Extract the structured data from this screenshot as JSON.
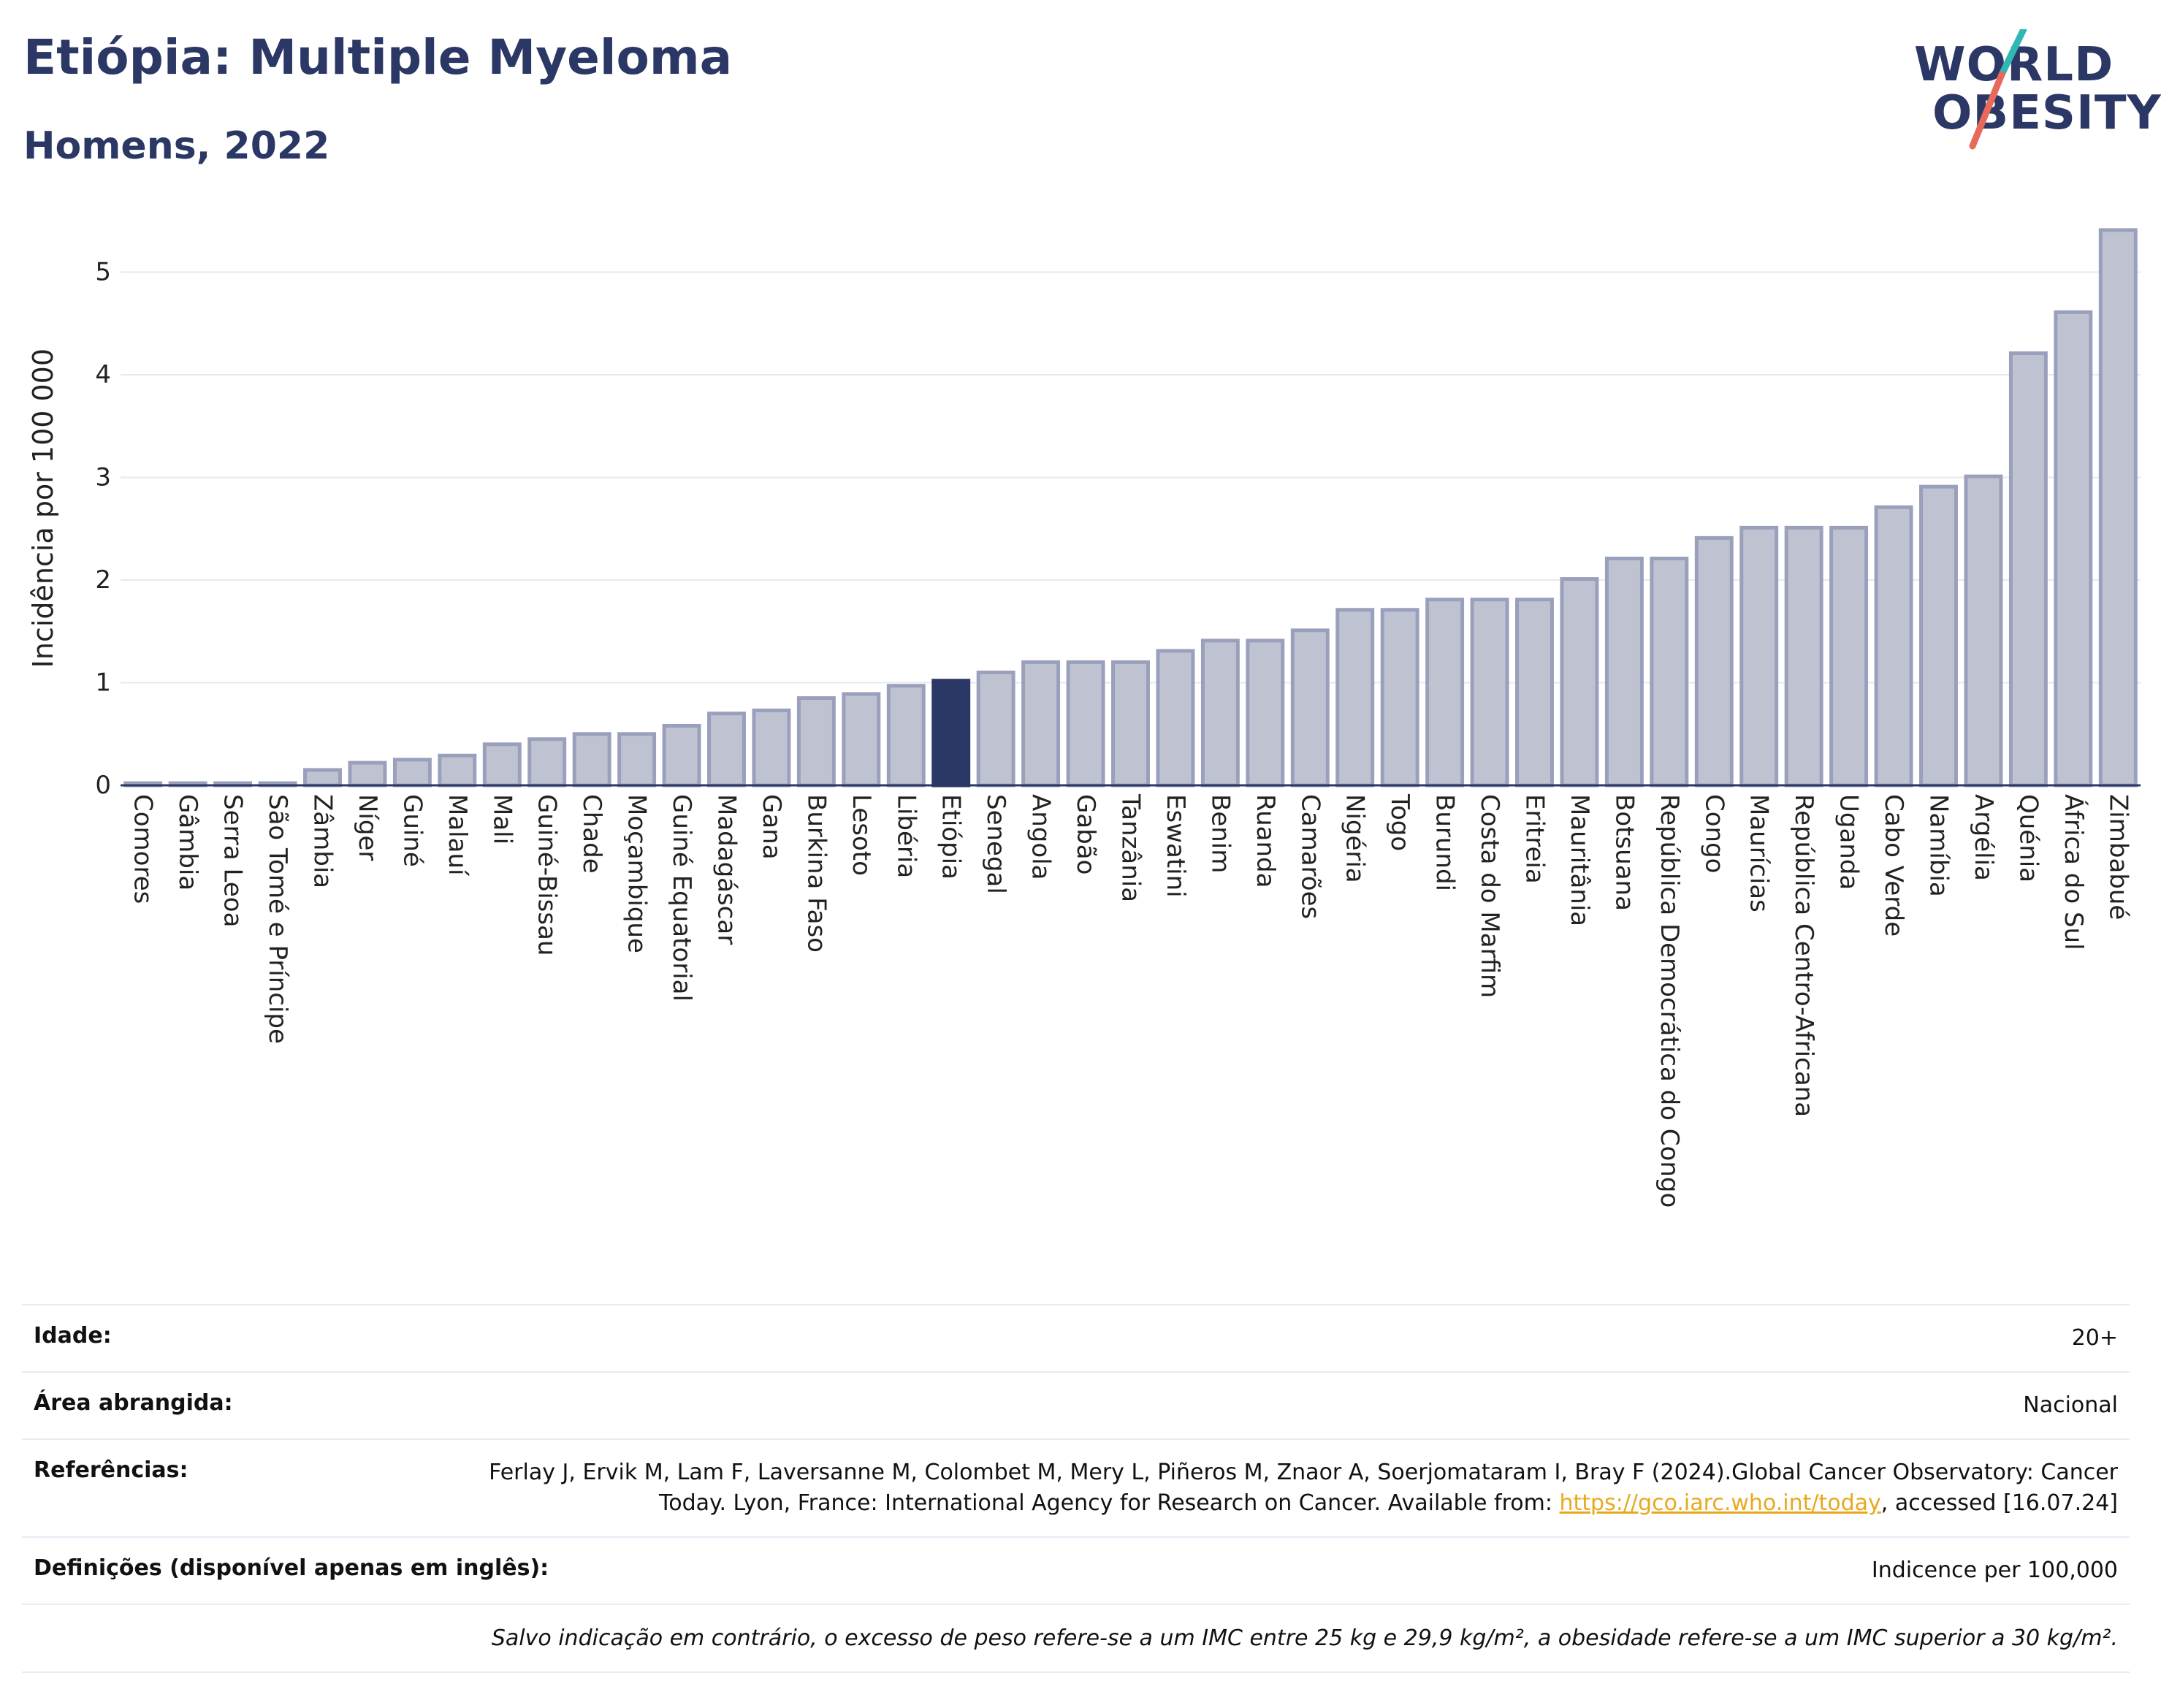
{
  "header": {
    "title": "Etiópia: Multiple Myeloma",
    "subtitle": "Homens, 2022"
  },
  "logo": {
    "line1": "WORLD",
    "line2": "OBESITY"
  },
  "colors": {
    "highlight": "#2b3764",
    "bar_fill": "#bfc3d1",
    "bar_stroke": "#9aa0bb",
    "link": "#e8a91d"
  },
  "chart_data": {
    "type": "bar",
    "ylabel": "Incidência por 100 000",
    "xlabel": "",
    "ylim": [
      0,
      5.6
    ],
    "yticks": [
      0,
      1,
      2,
      3,
      4,
      5
    ],
    "grid": true,
    "highlight": "Etiópia",
    "categories": [
      "Comores",
      "Gâmbia",
      "Serra Leoa",
      "São Tomé e Príncipe",
      "Zâmbia",
      "Níger",
      "Guiné",
      "Malauí",
      "Mali",
      "Guiné-Bissau",
      "Chade",
      "Moçambique",
      "Guiné Equatorial",
      "Madagáscar",
      "Gana",
      "Burkina Faso",
      "Lesoto",
      "Libéria",
      "Etiópia",
      "Senegal",
      "Angola",
      "Gabão",
      "Tanzânia",
      "Eswatini",
      "Benim",
      "Ruanda",
      "Camarões",
      "Nigéria",
      "Togo",
      "Burundi",
      "Costa do Marfim",
      "Eritreia",
      "Mauritânia",
      "Botsuana",
      "República Democrática do Congo",
      "Congo",
      "Maurícias",
      "República Centro-Africana",
      "Uganda",
      "Cabo Verde",
      "Namíbia",
      "Argélia",
      "Quénia",
      "África do Sul",
      "Zimbabué"
    ],
    "values": [
      0.02,
      0.02,
      0.02,
      0.02,
      0.15,
      0.22,
      0.25,
      0.29,
      0.4,
      0.45,
      0.5,
      0.5,
      0.58,
      0.7,
      0.73,
      0.85,
      0.89,
      0.97,
      1.02,
      1.1,
      1.2,
      1.2,
      1.2,
      1.31,
      1.41,
      1.41,
      1.51,
      1.71,
      1.71,
      1.81,
      1.81,
      1.81,
      2.01,
      2.21,
      2.21,
      2.41,
      2.51,
      2.51,
      2.51,
      2.71,
      2.91,
      3.01,
      4.21,
      4.61,
      5.41
    ]
  },
  "details": {
    "idade_label": "Idade:",
    "idade_value": "20+",
    "area_label": "Área abrangida:",
    "area_value": "Nacional",
    "ref_label": "Referências:",
    "ref_text1": "Ferlay J, Ervik M, Lam F, Laversanne M, Colombet M, Mery L, Piñeros M, Znaor A, Soerjomataram I, Bray F (2024).Global Cancer Observatory: Cancer Today. Lyon, France: International Agency for Research on Cancer. Available from: ",
    "ref_link": "https://gco.iarc.who.int/today",
    "ref_text2": ", accessed [16.07.24]",
    "def_label": "Definições (disponível apenas em inglês):",
    "def_value": "Indicence per 100,000",
    "note": "Salvo indicação em contrário, o excesso de peso refere-se a um IMC entre 25 kg e 29,9 kg/m², a obesidade refere-se a um IMC superior a 30 kg/m²."
  }
}
